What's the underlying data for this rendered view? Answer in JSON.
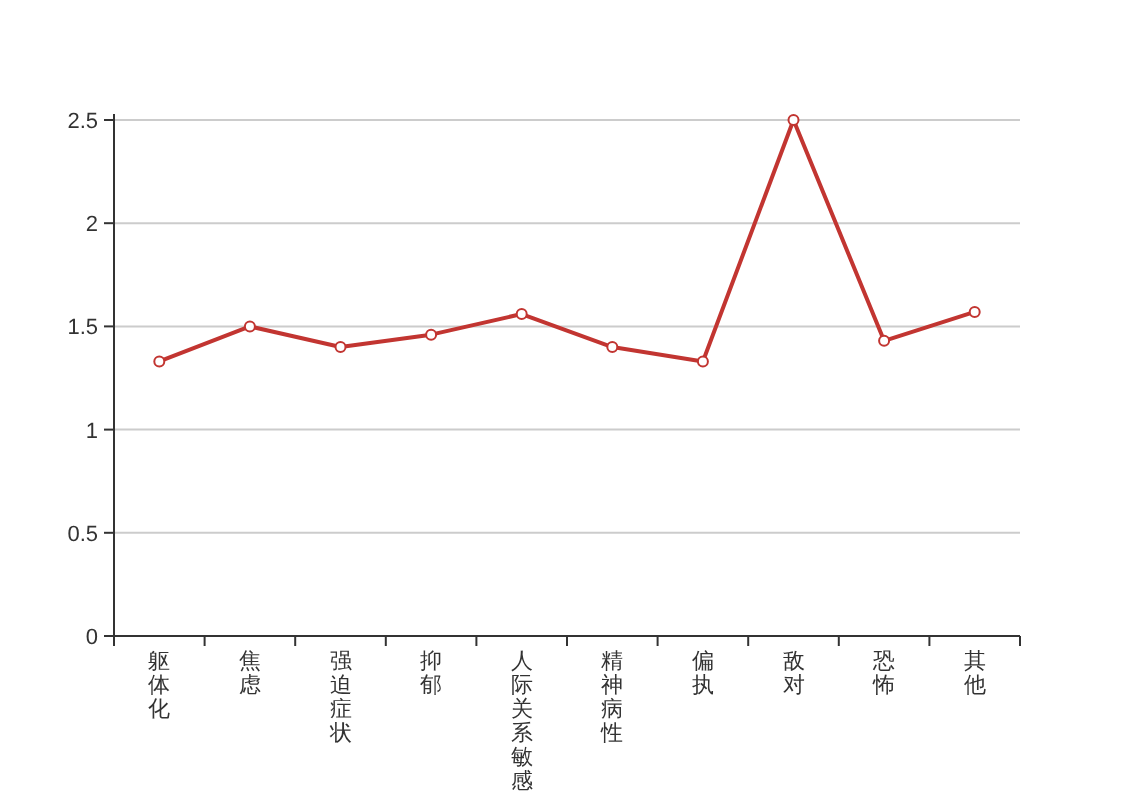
{
  "chart_data": {
    "type": "line",
    "categories": [
      "躯体化",
      "焦虑",
      "强迫症状",
      "抑郁",
      "人际关系敏感",
      "精神病性",
      "偏执",
      "敌对",
      "恐怖",
      "其他"
    ],
    "series": [
      {
        "color": "#c23531",
        "values": [
          1.33,
          1.5,
          1.4,
          1.46,
          1.56,
          1.4,
          1.33,
          2.5,
          1.43,
          1.57
        ]
      }
    ],
    "ylim": [
      0,
      2.5
    ],
    "yticks": [
      0,
      0.5,
      1,
      1.5,
      2,
      2.5
    ],
    "grid": "y",
    "marker": "circle",
    "line_style": "solid"
  }
}
